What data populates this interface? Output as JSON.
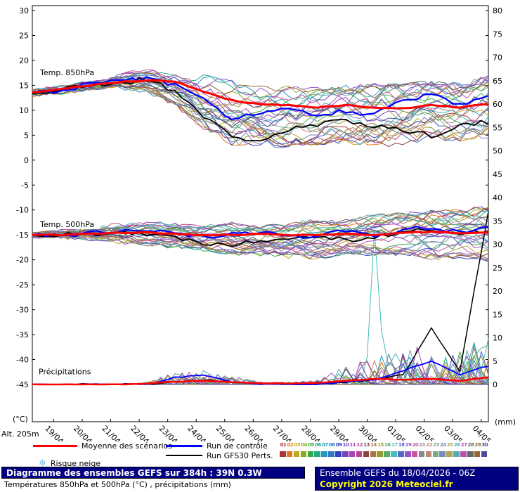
{
  "axes": {
    "left_unit": "(°C)",
    "right_unit": "(mm)",
    "left_ticks": [
      30,
      25,
      20,
      15,
      10,
      5,
      0,
      -5,
      -10,
      -15,
      -20,
      -25,
      -30,
      -35,
      -40,
      -45
    ],
    "right_ticks": [
      80,
      75,
      70,
      65,
      60,
      55,
      50,
      45,
      40,
      35,
      30,
      25,
      20,
      15,
      10,
      5,
      0
    ]
  },
  "labels": {
    "altitude": "Alt. 205m"
  },
  "legend": {
    "mean_label": "Moyenne des scénarios",
    "control_label": "Run de contrôle",
    "gfs_label": "Run GFS",
    "perts_label": "30 Perts.",
    "snow_label": "Risque neige",
    "snow_icon": "❄",
    "member_numbers": [
      "01",
      "02",
      "03",
      "04",
      "05",
      "06",
      "07",
      "08",
      "09",
      "10",
      "11",
      "12",
      "13",
      "14",
      "15",
      "16",
      "17",
      "18",
      "19",
      "20",
      "21",
      "22",
      "23",
      "24",
      "25",
      "26",
      "27",
      "28",
      "29",
      "30"
    ]
  },
  "footer": {
    "run_info": "Ensemble GEFS du 18/04/2026 - 06Z",
    "copyright": "Copyright 2026 Meteociel.fr"
  },
  "colors": {
    "footer_bg": "#000080",
    "copyright": "#ffff00",
    "snow": "#7fc4e8"
  },
  "chart_data": {
    "type": "line",
    "title": "Diagramme des ensembles GEFS sur 384h : 39N 0.3W",
    "subtitle": "Températures 850hPa et 500hPa (°C) , précipitations (mm)",
    "x_start": "18/04 06Z",
    "x": [
      "19/04",
      "20/04",
      "21/04",
      "22/04",
      "23/04",
      "24/04",
      "25/04",
      "26/04",
      "27/04",
      "28/04",
      "29/04",
      "30/04",
      "01/05",
      "02/05",
      "03/05",
      "04/05"
    ],
    "left_axis": {
      "unit": "°C",
      "min": -45,
      "max": 30,
      "tick_step": 5
    },
    "right_axis": {
      "unit": "mm",
      "min": 0,
      "max": 80,
      "tick_step": 5
    },
    "legend_position": "bottom",
    "grid": false,
    "colors": {
      "mean": "#ff0000",
      "control": "#0000ff",
      "gfs": "#000000"
    },
    "member_colors": [
      "#aa3333",
      "#dd7722",
      "#bbaa22",
      "#88aa22",
      "#33aa44",
      "#22aa88",
      "#2299bb",
      "#3377cc",
      "#3344bb",
      "#7744bb",
      "#aa44bb",
      "#bb4488",
      "#884444",
      "#aa7744",
      "#999933",
      "#55aa66",
      "#44bbbb",
      "#5566cc",
      "#9955cc",
      "#cc5599",
      "#888888",
      "#bb8877",
      "#77aa88",
      "#7788bb",
      "#aaa855",
      "#55aaba",
      "#b055b0",
      "#666666",
      "#996633",
      "#4b4b99"
    ],
    "member_spikes": [
      {
        "member": 17,
        "day": 12,
        "value": 33
      },
      {
        "member": 11,
        "day": 13.5,
        "value": 8
      },
      {
        "member": 5,
        "day": 15,
        "value": 7
      },
      {
        "member": 24,
        "day": 14,
        "value": 6
      }
    ],
    "panels": {
      "t850": {
        "label": "Temp. 850hPa",
        "mean": [
          13.5,
          14.2,
          15,
          15.6,
          16,
          15.8,
          13.8,
          12,
          11.2,
          11,
          10.6,
          11,
          10.6,
          10.4,
          11,
          10.6,
          11.2
        ],
        "control": [
          13.4,
          14,
          15.2,
          16,
          16.4,
          15,
          12,
          8.5,
          9.5,
          10,
          9,
          10,
          9,
          12,
          13,
          11,
          12.5
        ],
        "gfs": [
          13.4,
          14,
          15,
          15.5,
          16.2,
          14,
          9,
          4.5,
          4,
          6,
          7,
          8,
          7,
          6,
          5,
          7,
          7.5
        ],
        "env_min": [
          13,
          13.4,
          14.2,
          14.6,
          13.5,
          11,
          6,
          3,
          2.5,
          2.5,
          3,
          3.5,
          2.5,
          3,
          4,
          3.5,
          4
        ],
        "env_max": [
          14,
          14.8,
          15.8,
          17,
          18.2,
          18,
          17,
          16,
          15,
          15,
          14.5,
          15,
          15.5,
          15.5,
          16,
          15.5,
          17
        ]
      },
      "t500": {
        "label": "Temp. 500hPa",
        "mean": [
          -15,
          -15,
          -14.8,
          -14.6,
          -14.5,
          -14.8,
          -15,
          -15,
          -14.8,
          -15,
          -15,
          -14.8,
          -15,
          -14.6,
          -14.4,
          -14.6,
          -14.5
        ],
        "control": [
          -15,
          -15.2,
          -14.6,
          -14.2,
          -14,
          -14.5,
          -15.5,
          -15,
          -14.5,
          -15.5,
          -15,
          -14,
          -15.5,
          -14,
          -13.5,
          -14.5,
          -13.5
        ],
        "gfs": [
          -15,
          -15,
          -14.8,
          -14.2,
          -14.8,
          -15.5,
          -16.5,
          -17,
          -16,
          -15.5,
          -15,
          -16,
          -15.5,
          -14.5,
          -13.8,
          -15,
          -14
        ],
        "env_min": [
          -15.5,
          -15.6,
          -16,
          -16.5,
          -17,
          -17.5,
          -18,
          -19,
          -19,
          -19.5,
          -20,
          -19,
          -19,
          -19,
          -20,
          -19.5,
          -20.5
        ],
        "env_max": [
          -14.5,
          -14.2,
          -13.6,
          -13,
          -12.5,
          -12.8,
          -13,
          -12.5,
          -13,
          -12.5,
          -12,
          -12,
          -11,
          -10.5,
          -10,
          -10,
          -9
        ]
      },
      "precip": {
        "label": "Précipitations",
        "mean": [
          0,
          0,
          0,
          0,
          0.2,
          0.6,
          0.8,
          0.5,
          0.3,
          0.2,
          0.3,
          0.8,
          1.2,
          1,
          1.2,
          0.8,
          1.5
        ],
        "control": [
          0,
          0,
          0,
          0,
          0,
          1.5,
          2,
          0.5,
          0,
          0,
          0,
          0.5,
          1,
          3,
          5,
          2,
          4
        ],
        "gfs": [
          0,
          0,
          0,
          0,
          0,
          0.5,
          1,
          0.5,
          0,
          0,
          0,
          0.5,
          1,
          2,
          12,
          3,
          37
        ],
        "env_min": [
          0,
          0,
          0,
          0,
          0,
          0,
          0,
          0,
          0,
          0,
          0,
          0,
          0,
          0,
          0,
          0,
          0
        ],
        "env_max": [
          0,
          0,
          0,
          0,
          0.5,
          2.5,
          3,
          2,
          0.5,
          0.5,
          1,
          4,
          6,
          8,
          6,
          8,
          10
        ]
      }
    }
  }
}
